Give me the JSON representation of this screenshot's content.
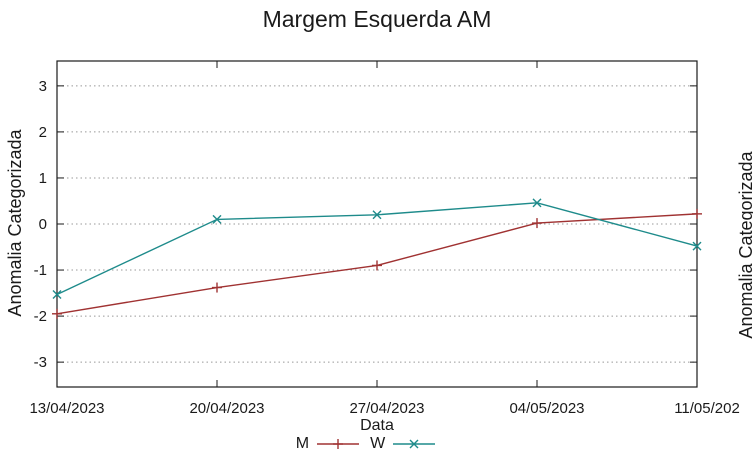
{
  "chart_data": {
    "type": "line",
    "title": "Margem Esquerda AM",
    "xlabel": "Data",
    "ylabel": "Anomalia Categorizada",
    "x_tick_labels": [
      "13/04/2023",
      "20/04/2023",
      "27/04/2023",
      "04/05/2023",
      "11/05/202"
    ],
    "y_ticks": [
      3,
      2,
      1,
      0,
      -1,
      -2,
      -3
    ],
    "ylim": [
      -3.54,
      3.54
    ],
    "grid": {
      "horizontal": true,
      "vertical": false,
      "style": "dotted",
      "color": "#999999"
    },
    "legend_position": "bottom-center",
    "series": [
      {
        "name": "M",
        "color": "#a03232",
        "marker": "plus",
        "values": [
          -1.95,
          -1.38,
          -0.9,
          0.02,
          0.22
        ]
      },
      {
        "name": "W",
        "color": "#1e8b8b",
        "marker": "x",
        "values": [
          -1.53,
          0.1,
          0.2,
          0.46,
          -0.48
        ]
      }
    ]
  },
  "adjacent_chart": {
    "ylabel_clipped": "Anomalia Categorizada"
  },
  "colors": {
    "axis": "#1a1a1a",
    "text": "#1a1a1a",
    "grid": "#999999",
    "background": "#ffffff"
  }
}
